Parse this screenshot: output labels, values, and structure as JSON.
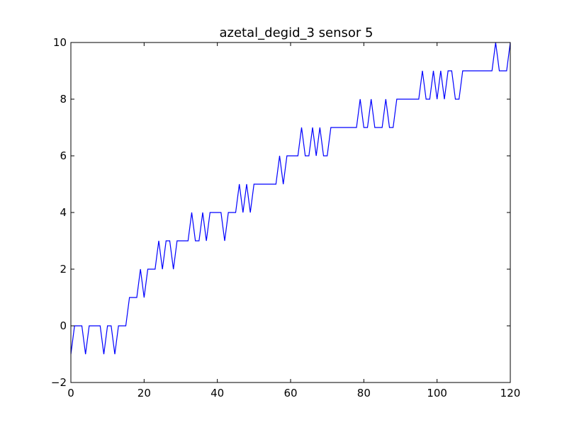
{
  "chart_data": {
    "type": "line",
    "title": "azetal_degid_3 sensor 5",
    "xlabel": "",
    "ylabel": "",
    "xlim": [
      0,
      120
    ],
    "ylim": [
      -2,
      10
    ],
    "xticks": [
      0,
      20,
      40,
      60,
      80,
      100,
      120
    ],
    "yticks": [
      -2,
      0,
      2,
      4,
      6,
      8,
      10
    ],
    "grid": false,
    "line_color": "#0000ff",
    "series": [
      {
        "x": [
          0,
          1,
          2,
          3,
          4,
          5,
          6,
          7,
          8,
          9,
          10,
          11,
          12,
          13,
          14,
          15,
          16,
          17,
          18,
          19,
          20,
          21,
          22,
          23,
          24,
          25,
          26,
          27,
          28,
          29,
          30,
          31,
          32,
          33,
          34,
          35,
          36,
          37,
          38,
          39,
          40,
          41,
          42,
          43,
          44,
          45,
          46,
          47,
          48,
          49,
          50,
          51,
          52,
          53,
          54,
          55,
          56,
          57,
          58,
          59,
          60,
          61,
          62,
          63,
          64,
          65,
          66,
          67,
          68,
          69,
          70,
          71,
          72,
          73,
          74,
          75,
          76,
          77,
          78,
          79,
          80,
          81,
          82,
          83,
          84,
          85,
          86,
          87,
          88,
          89,
          90,
          91,
          92,
          93,
          94,
          95,
          96,
          97,
          98,
          99,
          100,
          101,
          102,
          103,
          104,
          105,
          106,
          107,
          108,
          109,
          110,
          111,
          112,
          113,
          114,
          115,
          116,
          117,
          118,
          119,
          120
        ],
        "y": [
          -1,
          0,
          0,
          0,
          -1,
          0,
          0,
          0,
          0,
          -1,
          0,
          0,
          -1,
          0,
          0,
          0,
          1,
          1,
          1,
          2,
          1,
          2,
          2,
          2,
          3,
          2,
          3,
          3,
          2,
          3,
          3,
          3,
          3,
          4,
          3,
          3,
          4,
          3,
          4,
          4,
          4,
          4,
          3,
          4,
          4,
          4,
          5,
          4,
          5,
          4,
          5,
          5,
          5,
          5,
          5,
          5,
          5,
          6,
          5,
          6,
          6,
          6,
          6,
          7,
          6,
          6,
          7,
          6,
          7,
          6,
          6,
          7,
          7,
          7,
          7,
          7,
          7,
          7,
          7,
          8,
          7,
          7,
          8,
          7,
          7,
          7,
          8,
          7,
          7,
          8,
          8,
          8,
          8,
          8,
          8,
          8,
          9,
          8,
          8,
          9,
          8,
          9,
          8,
          9,
          9,
          8,
          8,
          9,
          9,
          9,
          9,
          9,
          9,
          9,
          9,
          9,
          10,
          9,
          9,
          9,
          10
        ]
      }
    ]
  }
}
